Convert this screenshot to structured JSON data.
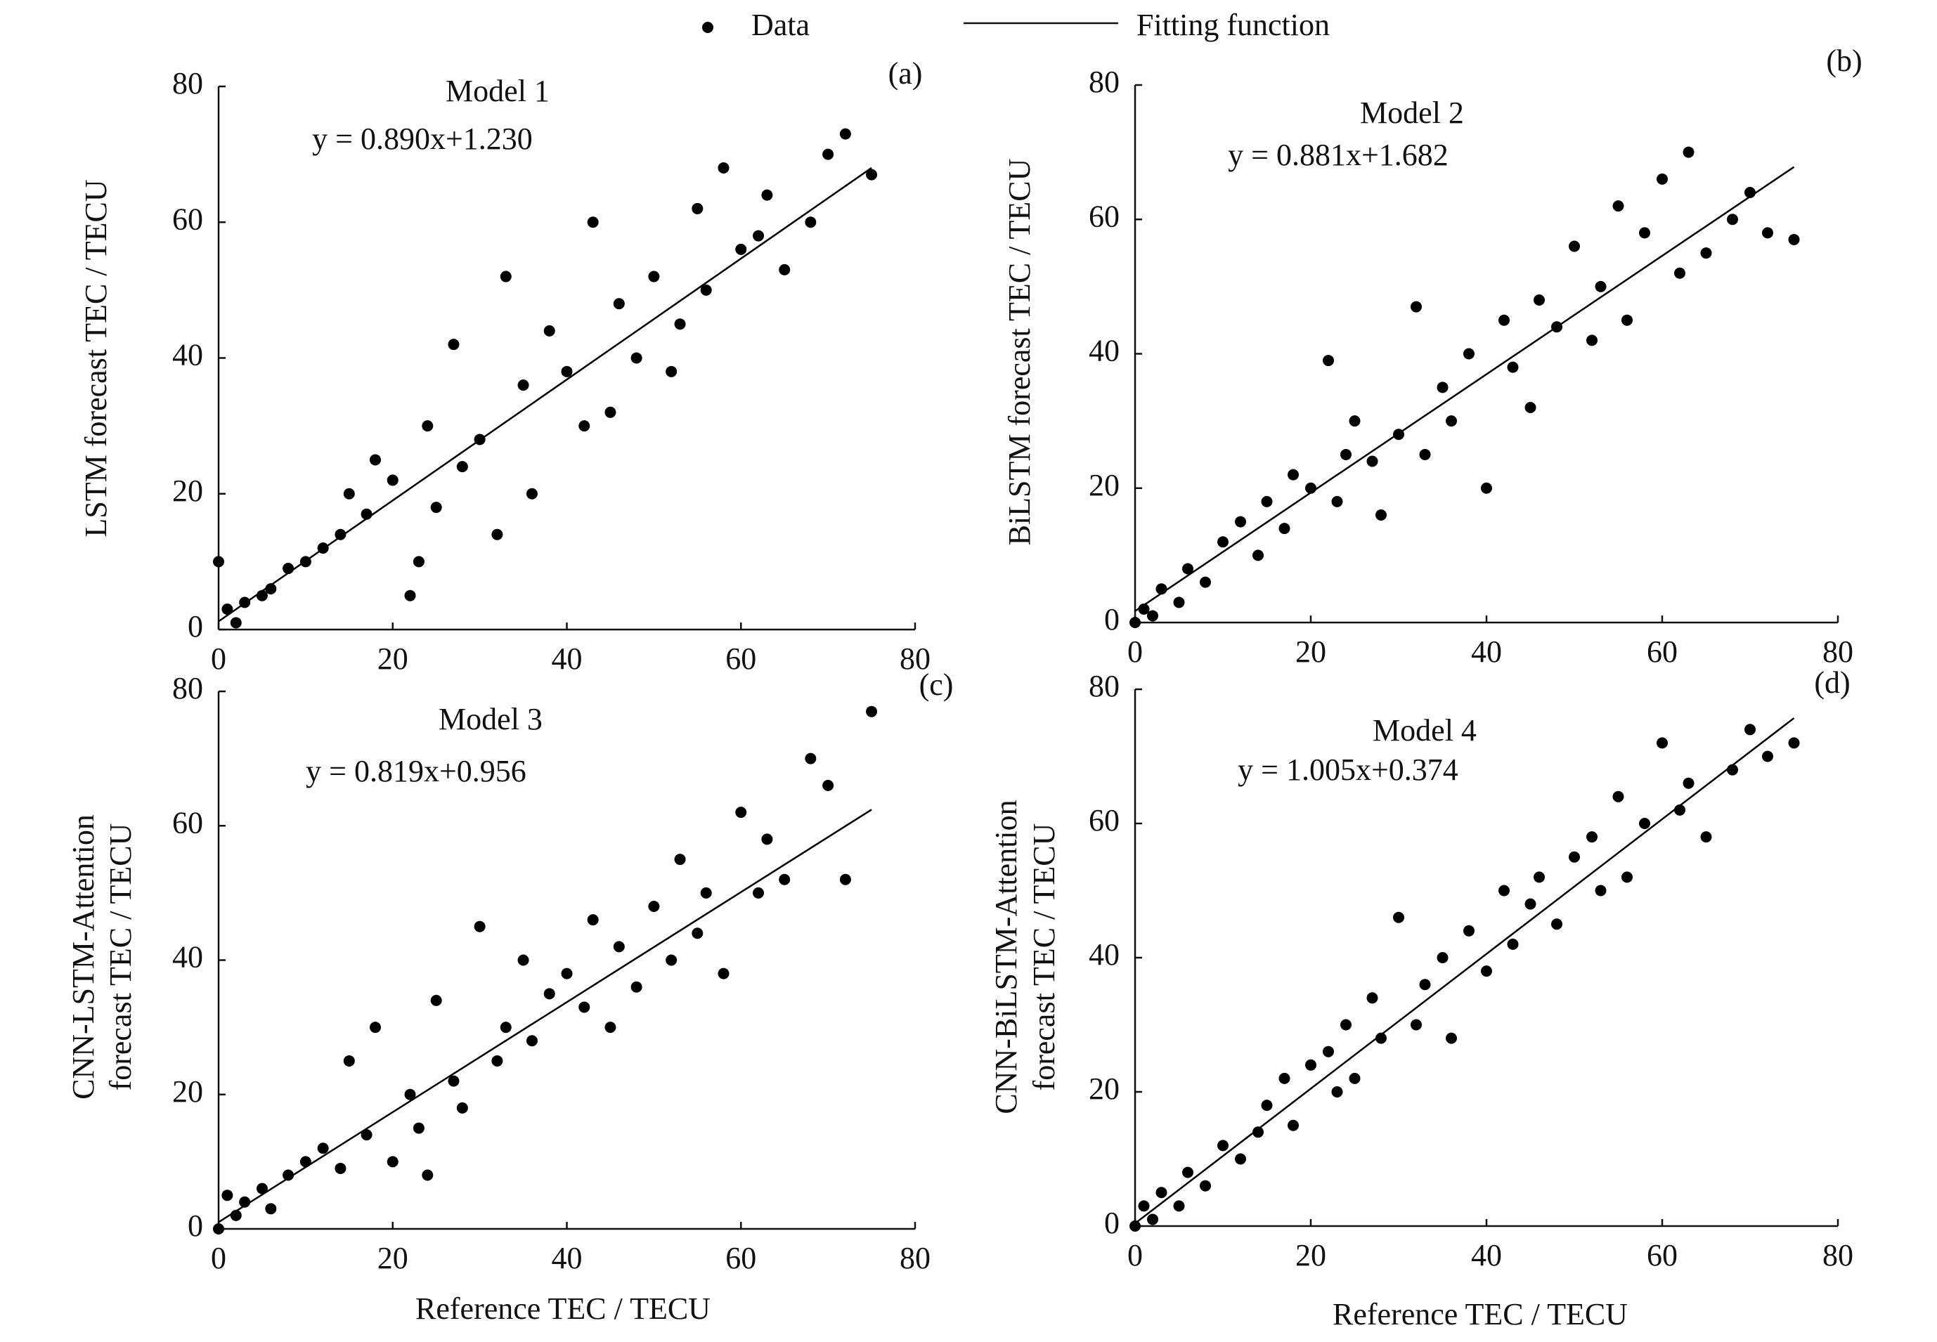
{
  "legend": {
    "data": "Data",
    "fit": "Fitting function"
  },
  "chart_data": [
    {
      "type": "scatter",
      "title": "Model 1",
      "equation": "y = 0.890x+1.230",
      "tag": "(a)",
      "ylabel": [
        "LSTM  forecast TEC / TECU"
      ],
      "x": [
        0,
        1,
        2,
        3,
        5,
        6,
        8,
        10,
        12,
        14,
        15,
        17,
        18,
        20,
        22,
        23,
        24,
        25,
        27,
        28,
        30,
        32,
        33,
        35,
        36,
        38,
        40,
        42,
        43,
        45,
        46,
        48,
        50,
        52,
        53,
        55,
        56,
        58,
        60,
        62,
        63,
        65,
        68,
        70,
        72,
        75
      ],
      "y": [
        10,
        3,
        1,
        4,
        5,
        6,
        9,
        10,
        12,
        14,
        20,
        17,
        25,
        22,
        5,
        10,
        30,
        18,
        42,
        24,
        28,
        14,
        52,
        36,
        20,
        44,
        38,
        30,
        60,
        32,
        48,
        40,
        52,
        38,
        45,
        62,
        50,
        68,
        56,
        58,
        64,
        53,
        60,
        70,
        73,
        67
      ],
      "fit": {
        "x": [
          0,
          75
        ],
        "y": [
          1.2,
          68
        ]
      },
      "color": "#000000",
      "xlim": [
        0,
        80
      ],
      "ylim": [
        0,
        80
      ],
      "xticks": [
        0,
        20,
        40,
        60,
        80
      ],
      "yticks": [
        0,
        20,
        40,
        60,
        80
      ]
    },
    {
      "type": "scatter",
      "title": "Model 2",
      "equation": "y = 0.881x+1.682",
      "tag": "(b)",
      "ylabel": [
        "BiLSTM forecast TEC / TECU"
      ],
      "x": [
        0,
        1,
        2,
        3,
        5,
        6,
        8,
        10,
        12,
        14,
        15,
        17,
        18,
        20,
        22,
        23,
        24,
        25,
        27,
        28,
        30,
        32,
        33,
        35,
        36,
        38,
        40,
        42,
        43,
        45,
        46,
        48,
        50,
        52,
        53,
        55,
        56,
        58,
        60,
        62,
        63,
        65,
        68,
        70,
        72,
        75
      ],
      "y": [
        0,
        2,
        1,
        5,
        3,
        8,
        6,
        12,
        15,
        10,
        18,
        14,
        22,
        20,
        39,
        18,
        25,
        30,
        24,
        16,
        28,
        47,
        25,
        35,
        30,
        40,
        20,
        45,
        38,
        32,
        48,
        44,
        56,
        42,
        50,
        62,
        45,
        58,
        66,
        52,
        70,
        55,
        60,
        64,
        58,
        57
      ],
      "fit": {
        "x": [
          0,
          75
        ],
        "y": [
          1.7,
          67.8
        ]
      },
      "color": "#000000",
      "xlim": [
        0,
        80
      ],
      "ylim": [
        0,
        80
      ],
      "xticks": [
        0,
        20,
        40,
        60,
        80
      ],
      "yticks": [
        0,
        20,
        40,
        60,
        80
      ]
    },
    {
      "type": "scatter",
      "title": "Model 3",
      "equation": "y = 0.819x+0.956",
      "tag": "(c)",
      "ylabel": [
        "CNN-LSTM-Attention",
        "forecast TEC / TECU"
      ],
      "xlabel": "Reference TEC / TECU",
      "x": [
        0,
        1,
        2,
        3,
        5,
        6,
        8,
        10,
        12,
        14,
        15,
        17,
        18,
        20,
        22,
        23,
        24,
        25,
        27,
        28,
        30,
        32,
        33,
        35,
        36,
        38,
        40,
        42,
        43,
        45,
        46,
        48,
        50,
        52,
        53,
        55,
        56,
        58,
        60,
        62,
        63,
        65,
        68,
        70,
        72,
        75
      ],
      "y": [
        0,
        5,
        2,
        4,
        6,
        3,
        8,
        10,
        12,
        9,
        25,
        14,
        30,
        10,
        20,
        15,
        8,
        34,
        22,
        18,
        45,
        25,
        30,
        40,
        28,
        35,
        38,
        33,
        46,
        30,
        42,
        36,
        48,
        40,
        55,
        44,
        50,
        38,
        62,
        50,
        58,
        52,
        70,
        66,
        52,
        77
      ],
      "fit": {
        "x": [
          0,
          75
        ],
        "y": [
          1.0,
          62.4
        ]
      },
      "color": "#000000",
      "xlim": [
        0,
        80
      ],
      "ylim": [
        0,
        80
      ],
      "xticks": [
        0,
        20,
        40,
        60,
        80
      ],
      "yticks": [
        0,
        20,
        40,
        60,
        80
      ]
    },
    {
      "type": "scatter",
      "title": "Model 4",
      "equation": "y = 1.005x+0.374",
      "tag": "(d)",
      "ylabel": [
        "CNN-BiLSTM-Attention",
        "forecast TEC / TECU"
      ],
      "xlabel": "Reference TEC / TECU",
      "x": [
        0,
        1,
        2,
        3,
        5,
        6,
        8,
        10,
        12,
        14,
        15,
        17,
        18,
        20,
        22,
        23,
        24,
        25,
        27,
        28,
        30,
        32,
        33,
        35,
        36,
        38,
        40,
        42,
        43,
        45,
        46,
        48,
        50,
        52,
        53,
        55,
        56,
        58,
        60,
        62,
        63,
        65,
        68,
        70,
        72,
        75
      ],
      "y": [
        0,
        3,
        1,
        5,
        3,
        8,
        6,
        12,
        10,
        14,
        18,
        22,
        15,
        24,
        26,
        20,
        30,
        22,
        34,
        28,
        46,
        30,
        36,
        40,
        28,
        44,
        38,
        50,
        42,
        48,
        52,
        45,
        55,
        58,
        50,
        64,
        52,
        60,
        72,
        62,
        66,
        58,
        68,
        74,
        70,
        72
      ],
      "fit": {
        "x": [
          0,
          75
        ],
        "y": [
          0.4,
          75.7
        ]
      },
      "color": "#000000",
      "xlim": [
        0,
        80
      ],
      "ylim": [
        0,
        80
      ],
      "xticks": [
        0,
        20,
        40,
        60,
        80
      ],
      "yticks": [
        0,
        20,
        40,
        60,
        80
      ]
    }
  ]
}
